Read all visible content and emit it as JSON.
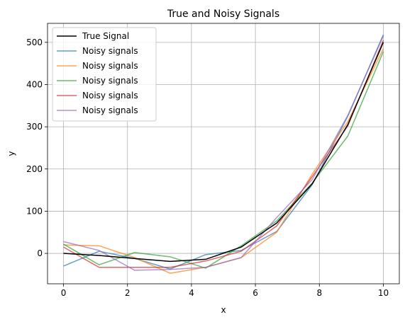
{
  "chart_data": {
    "type": "line",
    "title": "True and Noisy Signals",
    "xlabel": "x",
    "ylabel": "y",
    "xlim": [
      -0.5,
      10.5
    ],
    "ylim": [
      -72,
      545
    ],
    "xticks": [
      0,
      2,
      4,
      6,
      8,
      10
    ],
    "yticks": [
      0,
      100,
      200,
      300,
      400,
      500
    ],
    "grid": true,
    "legend_position": "top-left",
    "x": [
      0,
      1.111,
      2.222,
      3.333,
      4.444,
      5.556,
      6.667,
      7.778,
      8.889,
      10
    ],
    "series": [
      {
        "name": "True Signal",
        "color": "#000000",
        "values": [
          0,
          -5,
          -12,
          -19,
          -14,
          15,
          72,
          165,
          305,
          500
        ]
      },
      {
        "name": "Noisy signals",
        "color": "#1f77b4",
        "values": [
          -30,
          5,
          -12,
          -37,
          -3,
          7,
          52,
          163,
          325,
          518
        ]
      },
      {
        "name": "Noisy signals",
        "color": "#ff7f0e",
        "values": [
          20,
          18,
          -10,
          -47,
          -33,
          -10,
          50,
          188,
          312,
          485
        ]
      },
      {
        "name": "Noisy signals",
        "color": "#2ca02c",
        "values": [
          22,
          -27,
          2,
          -8,
          -35,
          18,
          77,
          167,
          278,
          478
        ]
      },
      {
        "name": "Noisy signals",
        "color": "#d62728",
        "values": [
          15,
          -33,
          -33,
          -33,
          -18,
          5,
          65,
          182,
          302,
          505
        ]
      },
      {
        "name": "Noisy signals",
        "color": "#9467bd",
        "values": [
          28,
          7,
          -40,
          -38,
          -33,
          -10,
          85,
          175,
          327,
          515
        ]
      }
    ]
  }
}
